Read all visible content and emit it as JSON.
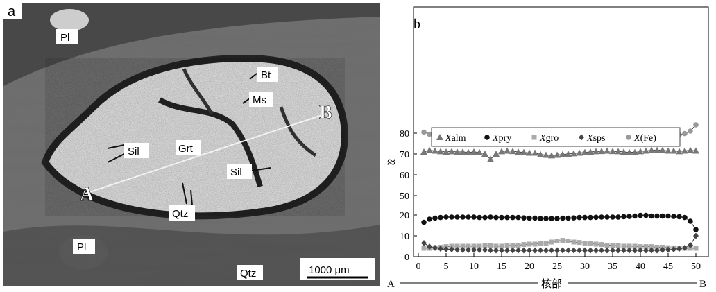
{
  "photo": {
    "panel_label": "a",
    "labels": {
      "pl_top": "Pl",
      "pl_bottom": "Pl",
      "bt": "Bt",
      "ms": "Ms",
      "sil_left": "Sil",
      "sil_right": "Sil",
      "grt": "Grt",
      "qtz_center": "Qtz",
      "qtz_bottom": "Qtz",
      "point_a": "A",
      "point_b": "B"
    },
    "scale_bar": "1000 μm"
  },
  "chart_data": {
    "type": "line",
    "panel_label": "b",
    "x": [
      1,
      2,
      3,
      4,
      5,
      6,
      7,
      8,
      9,
      10,
      11,
      12,
      13,
      14,
      15,
      16,
      17,
      18,
      19,
      20,
      21,
      22,
      23,
      24,
      25,
      26,
      27,
      28,
      29,
      30,
      31,
      32,
      33,
      34,
      35,
      36,
      37,
      38,
      39,
      40,
      41,
      42,
      43,
      44,
      45,
      46,
      47,
      48,
      49,
      50
    ],
    "x_ticks": [
      0,
      5,
      10,
      15,
      20,
      25,
      30,
      35,
      40,
      45,
      50
    ],
    "y_ticks_upper": [
      50,
      60,
      70,
      80
    ],
    "y_ticks_lower": [
      0,
      10,
      20
    ],
    "axis_break": "≈",
    "x_bottom_left": "A",
    "x_bottom_center": "核部",
    "x_bottom_right": "B",
    "legend": [
      {
        "italic": "X",
        "rest": "alm",
        "marker": "triangle"
      },
      {
        "italic": "X",
        "rest": "pry",
        "marker": "circle-black"
      },
      {
        "italic": "X",
        "rest": "gro",
        "marker": "square"
      },
      {
        "italic": "X",
        "rest": "sps",
        "marker": "diamond"
      },
      {
        "italic": "X",
        "rest": "(Fe)",
        "marker": "circle-gray"
      }
    ],
    "series": [
      {
        "id": "XFe",
        "color": "#999999",
        "values": [
          80.5,
          79.5,
          79.3,
          79.0,
          79.0,
          78.9,
          78.9,
          78.8,
          78.8,
          78.8,
          78.8,
          78.6,
          78.0,
          78.5,
          78.6,
          78.8,
          78.8,
          78.8,
          78.8,
          78.8,
          78.9,
          78.8,
          78.8,
          78.8,
          78.8,
          78.8,
          78.8,
          78.8,
          78.8,
          78.8,
          78.8,
          78.8,
          78.9,
          78.9,
          78.8,
          78.8,
          78.7,
          78.5,
          78.3,
          78.0,
          78.3,
          78.5,
          78.5,
          78.6,
          78.8,
          79.0,
          79.3,
          79.8,
          81.0,
          84.0
        ]
      },
      {
        "id": "Xalm",
        "color": "#777777",
        "values": [
          71.0,
          71.8,
          71.5,
          71.2,
          71.0,
          71.2,
          71.0,
          71.0,
          70.8,
          71.0,
          70.8,
          70.0,
          67.5,
          70.0,
          71.2,
          71.5,
          71.3,
          71.0,
          70.8,
          70.5,
          70.5,
          69.8,
          69.5,
          69.2,
          69.5,
          69.8,
          70.0,
          70.2,
          70.5,
          70.8,
          71.0,
          71.2,
          71.3,
          71.5,
          71.3,
          71.2,
          71.0,
          70.8,
          70.8,
          71.2,
          71.5,
          71.8,
          71.8,
          71.8,
          71.5,
          71.5,
          71.2,
          71.5,
          71.8,
          71.5
        ]
      },
      {
        "id": "Xpry",
        "color": "#111111",
        "values": [
          16.5,
          18.0,
          18.5,
          18.8,
          19.0,
          19.0,
          19.0,
          19.0,
          19.0,
          19.0,
          18.8,
          18.8,
          19.0,
          18.8,
          18.8,
          18.8,
          18.8,
          18.8,
          18.6,
          18.5,
          18.5,
          18.3,
          18.3,
          18.3,
          18.3,
          18.5,
          18.5,
          18.6,
          18.8,
          18.8,
          18.8,
          18.9,
          19.0,
          19.0,
          19.0,
          19.0,
          19.2,
          19.3,
          19.5,
          19.8,
          19.8,
          19.5,
          19.5,
          19.5,
          19.5,
          19.3,
          19.2,
          18.8,
          17.0,
          13.0
        ]
      },
      {
        "id": "Xgro",
        "color": "#aaaaaa",
        "values": [
          4.0,
          4.0,
          4.2,
          4.5,
          4.8,
          5.0,
          5.0,
          5.0,
          5.0,
          5.0,
          5.0,
          5.2,
          5.5,
          5.0,
          5.0,
          5.2,
          5.5,
          5.5,
          5.8,
          6.0,
          6.0,
          6.3,
          6.5,
          7.0,
          7.5,
          7.8,
          7.5,
          7.0,
          6.8,
          6.5,
          6.2,
          6.0,
          5.8,
          5.5,
          5.5,
          5.2,
          5.0,
          5.0,
          5.0,
          4.8,
          4.8,
          4.8,
          4.5,
          4.5,
          4.3,
          4.2,
          4.0,
          4.0,
          4.0,
          4.0
        ]
      },
      {
        "id": "Xsps",
        "color": "#444444",
        "values": [
          6.5,
          4.8,
          4.2,
          3.8,
          3.5,
          3.5,
          3.3,
          3.2,
          3.2,
          3.2,
          3.2,
          3.2,
          3.0,
          3.0,
          3.0,
          3.0,
          3.0,
          3.0,
          3.0,
          3.0,
          3.0,
          3.0,
          3.0,
          3.0,
          3.0,
          3.0,
          3.0,
          3.0,
          3.0,
          3.0,
          3.0,
          3.0,
          3.0,
          3.0,
          3.0,
          3.0,
          3.0,
          3.0,
          3.0,
          3.0,
          3.0,
          3.0,
          3.0,
          3.2,
          3.3,
          3.5,
          3.8,
          4.2,
          5.5,
          10.0
        ]
      }
    ]
  }
}
